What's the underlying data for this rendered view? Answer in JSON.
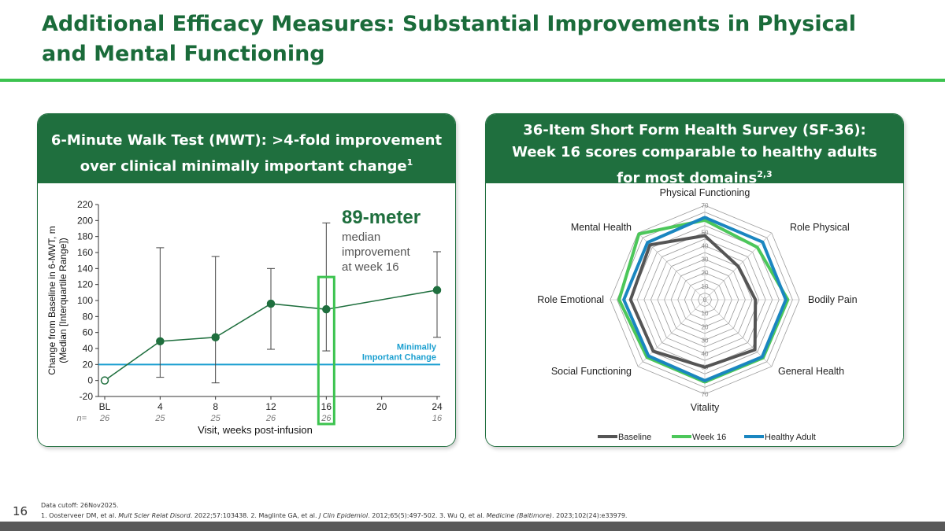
{
  "title": "Additional Efficacy Measures: Substantial Improvements in Physical and Mental Functioning",
  "left_panel": {
    "heading_line1": "6-Minute Walk Test (MWT): >4-fold improvement",
    "heading_line2": "over clinical minimally important change",
    "heading_sup": "1",
    "callout_big": "89-meter",
    "callout_lines": [
      "median",
      "improvement",
      "at week 16"
    ],
    "mic_label_line1": "Minimally",
    "mic_label_line2": "Important Change"
  },
  "right_panel": {
    "heading_line1": "36-Item Short Form Health Survey (SF-36):",
    "heading_line2": "Week 16 scores comparable to healthy adults",
    "heading_line3": "for most domains",
    "heading_sup": "2,3"
  },
  "chart_data": [
    {
      "type": "line",
      "title": "",
      "xlabel": "Visit, weeks post-infusion",
      "ylabel": "Change from Baseline in 6-MWT, m",
      "ylabel2": "(Median [Interquartile Range])",
      "ylim": [
        -20,
        220
      ],
      "yticks": [
        -20,
        0,
        20,
        40,
        60,
        80,
        100,
        120,
        140,
        160,
        180,
        200,
        220
      ],
      "categories": [
        "BL",
        "4",
        "8",
        "12",
        "16",
        "20",
        "24"
      ],
      "x": [
        0,
        4,
        8,
        12,
        16,
        24
      ],
      "xtick_values": [
        0,
        4,
        8,
        12,
        16,
        20,
        24
      ],
      "x_labels": [
        "BL",
        "4",
        "8",
        "12",
        "16",
        "24"
      ],
      "values": [
        0,
        49,
        54,
        96,
        89,
        113
      ],
      "error_low": [
        null,
        4,
        -3,
        39,
        37,
        54
      ],
      "error_high": [
        null,
        166,
        155,
        140,
        197,
        161
      ],
      "n_prefix": "n=",
      "n": [
        "26",
        "25",
        "25",
        "26",
        "26",
        "16"
      ],
      "reference_line": {
        "value": 20,
        "label": "Minimally Important Change",
        "color": "#1a9fd0"
      },
      "highlight_x": 16,
      "colors": {
        "line": "#1f6f3e",
        "highlight": "#3cc34f",
        "error": "#444444"
      }
    },
    {
      "type": "radar",
      "axes": [
        "Physical Functioning",
        "Role Physical",
        "Bodily Pain",
        "General Health",
        "Vitality",
        "Social Functioning",
        "Role Emotional",
        "Mental Health"
      ],
      "ring_labels_top": [
        "70",
        "60",
        "50",
        "40",
        "30",
        "20",
        "10",
        "0"
      ],
      "ring_labels_bottom": [
        "10",
        "20",
        "30",
        "40",
        "50",
        "60",
        "70"
      ],
      "rmin": -70,
      "rmax": 70,
      "series": [
        {
          "name": "Baseline",
          "color": "#555555",
          "values": [
            25,
            0,
            5,
            35,
            30,
            38,
            40,
            45
          ]
        },
        {
          "name": "Week 16",
          "color": "#4cc75a",
          "values": [
            48,
            40,
            53,
            52,
            52,
            51,
            57,
            68
          ]
        },
        {
          "name": "Healthy Adult",
          "color": "#1a86c0",
          "values": [
            52,
            51,
            50,
            50,
            50,
            48,
            50,
            50
          ]
        }
      ]
    }
  ],
  "footer": {
    "page_number": "16",
    "cutoff": "Data cutoff: 26Nov2025.",
    "ref1": "1. Oosterveer DM, et al. ",
    "ref1_journal": "Mult Scler Relat Disord",
    "ref1_rest": ". 2022;57:103438. 2. Maglinte GA, et al. ",
    "ref2_journal": "J Clin Epidemiol",
    "ref2_rest": ". 2012;65(5):497-502. 3. Wu Q, et al. ",
    "ref3_journal": "Medicine (Baltimore)",
    "ref3_rest": ". 2023;102(24):e33979."
  }
}
